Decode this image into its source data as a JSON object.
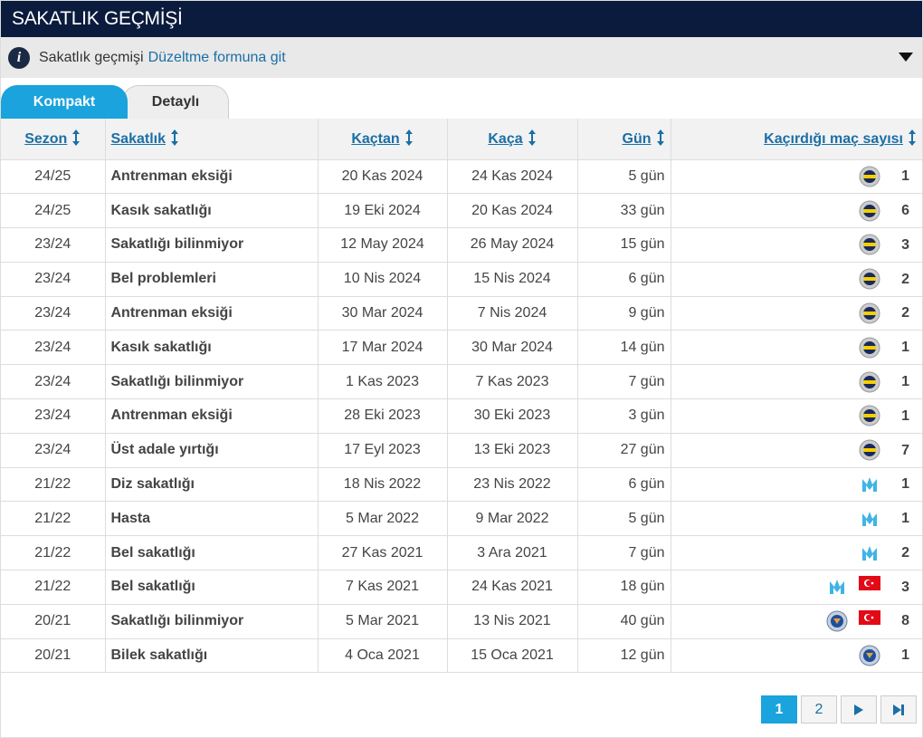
{
  "header": {
    "title": "SAKATLIK GEÇMİŞİ"
  },
  "info": {
    "text": "Sakatlık geçmişi",
    "link": "Düzeltme formuna git"
  },
  "tabs": [
    "Kompakt",
    "Detaylı"
  ],
  "table": {
    "columns": [
      "Sezon",
      "Sakatlık",
      "Kaçtan",
      "Kaça",
      "Gün",
      "Kaçırdığı maç sayısı"
    ],
    "rows": [
      [
        "24/25",
        "Antrenman eksiği",
        "20 Kas 2024",
        "24 Kas 2024",
        "5 gün",
        1
      ],
      [
        "24/25",
        "Kasık sakatlığı",
        "19 Eki 2024",
        "20 Kas 2024",
        "33 gün",
        6
      ],
      [
        "23/24",
        "Sakatlığı bilinmiyor",
        "12 May 2024",
        "26 May 2024",
        "15 gün",
        3
      ],
      [
        "23/24",
        "Bel problemleri",
        "10 Nis 2024",
        "15 Nis 2024",
        "6 gün",
        2
      ],
      [
        "23/24",
        "Antrenman eksiği",
        "30 Mar 2024",
        "7 Nis 2024",
        "9 gün",
        2
      ],
      [
        "23/24",
        "Kasık sakatlığı",
        "17 Mar 2024",
        "30 Mar 2024",
        "14 gün",
        1
      ],
      [
        "23/24",
        "Sakatlığı bilinmiyor",
        "1 Kas 2023",
        "7 Kas 2023",
        "7 gün",
        1
      ],
      [
        "23/24",
        "Antrenman eksiği",
        "28 Eki 2023",
        "30 Eki 2023",
        "3 gün",
        1
      ],
      [
        "23/24",
        "Üst adale yırtığı",
        "17 Eyl 2023",
        "13 Eki 2023",
        "27 gün",
        7
      ],
      [
        "21/22",
        "Diz sakatlığı",
        "18 Nis 2022",
        "23 Nis 2022",
        "6 gün",
        1
      ],
      [
        "21/22",
        "Hasta",
        "5 Mar 2022",
        "9 Mar 2022",
        "5 gün",
        1
      ],
      [
        "21/22",
        "Bel sakatlığı",
        "27 Kas 2021",
        "3 Ara 2021",
        "7 gün",
        2
      ],
      [
        "21/22",
        "Bel sakatlığı",
        "7 Kas 2021",
        "24 Kas 2021",
        "18 gün",
        3
      ],
      [
        "20/21",
        "Sakatlığı bilinmiyor",
        "5 Mar 2021",
        "13 Nis 2021",
        "40 gün",
        8
      ],
      [
        "20/21",
        "Bilek sakatlığı",
        "4 Oca 2021",
        "15 Oca 2021",
        "12 gün",
        1
      ]
    ]
  },
  "pagination": {
    "pages": [
      1,
      2
    ]
  }
}
